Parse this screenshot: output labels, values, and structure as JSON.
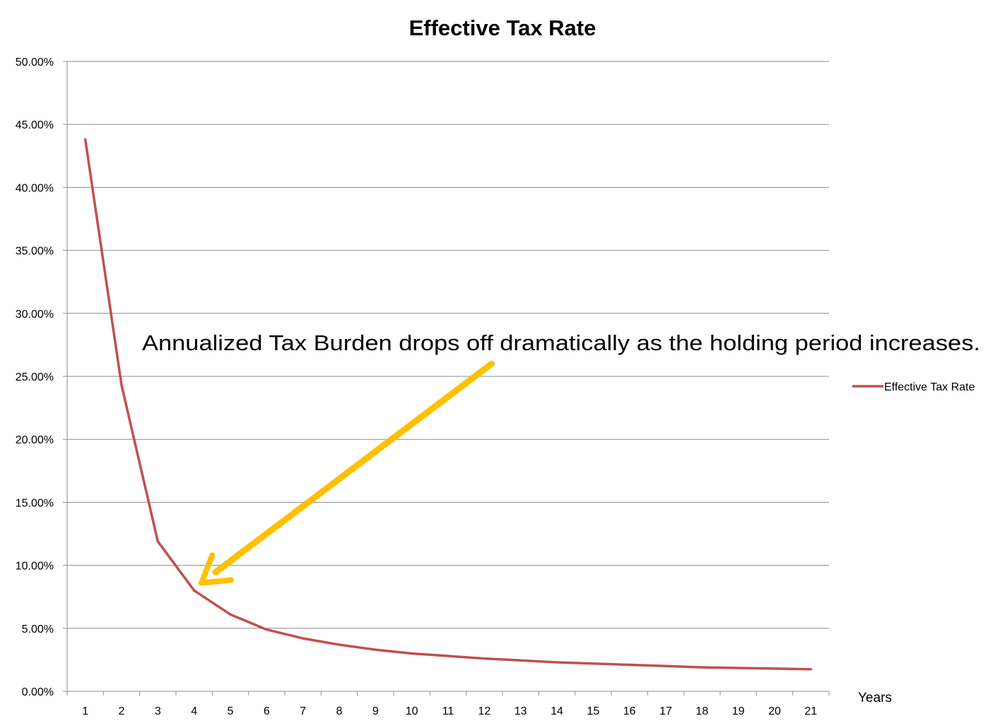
{
  "chart_data": {
    "type": "line",
    "title": "Effective Tax Rate",
    "xlabel": "Years",
    "ylabel": "",
    "categories": [
      "1",
      "2",
      "3",
      "4",
      "5",
      "6",
      "7",
      "8",
      "9",
      "10",
      "11",
      "12",
      "13",
      "14",
      "15",
      "16",
      "17",
      "18",
      "19",
      "20",
      "21"
    ],
    "series": [
      {
        "name": "Effective Tax Rate",
        "color": "#c0504d",
        "values": [
          43.8,
          24.3,
          11.9,
          8.0,
          6.1,
          4.9,
          4.2,
          3.7,
          3.3,
          3.0,
          2.8,
          2.6,
          2.45,
          2.3,
          2.2,
          2.1,
          2.0,
          1.9,
          1.85,
          1.8,
          1.75
        ]
      }
    ],
    "ylim": [
      0,
      50
    ],
    "y_ticks": [
      0,
      5,
      10,
      15,
      20,
      25,
      30,
      35,
      40,
      45,
      50
    ],
    "y_tick_labels": [
      "0.00%",
      "5.00%",
      "10.00%",
      "15.00%",
      "20.00%",
      "25.00%",
      "30.00%",
      "35.00%",
      "40.00%",
      "45.00%",
      "50.00%"
    ],
    "grid": true,
    "legend": {
      "placement": "right",
      "entries": [
        "Effective Tax Rate"
      ]
    },
    "annotation": {
      "text": "Annualized Tax Burden drops off dramatically as the holding period increases.",
      "arrow_color": "#ffc000",
      "arrow_from": {
        "x": 12.2,
        "y": 26.0
      },
      "arrow_to": {
        "x": 4.2,
        "y": 8.6
      }
    }
  }
}
